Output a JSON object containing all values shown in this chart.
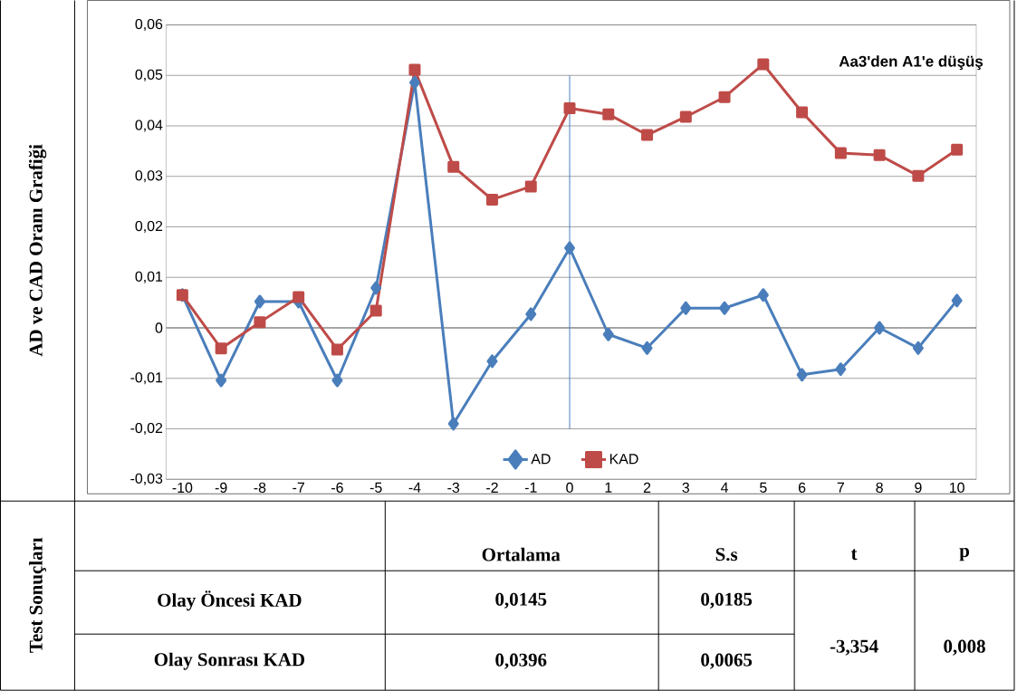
{
  "chart_data": {
    "type": "line",
    "x": [
      -10,
      -9,
      -8,
      -7,
      -6,
      -5,
      -4,
      -3,
      -2,
      -1,
      0,
      1,
      2,
      3,
      4,
      5,
      6,
      7,
      8,
      9,
      10
    ],
    "xlim": [
      -10.42,
      10.5
    ],
    "xticks": [
      -10,
      -9,
      -8,
      -7,
      -6,
      -5,
      -4,
      -3,
      -2,
      -1,
      0,
      1,
      2,
      3,
      4,
      5,
      6,
      7,
      8,
      9,
      10
    ],
    "ylim": [
      -0.03,
      0.06
    ],
    "yticks": [
      {
        "value": -0.03,
        "label": "-0,03"
      },
      {
        "value": -0.02,
        "label": "-0,02"
      },
      {
        "value": -0.01,
        "label": "-0,01"
      },
      {
        "value": 0,
        "label": "0"
      },
      {
        "value": 0.01,
        "label": "0,01"
      },
      {
        "value": 0.02,
        "label": "0,02"
      },
      {
        "value": 0.03,
        "label": "0,03"
      },
      {
        "value": 0.04,
        "label": "0,04"
      },
      {
        "value": 0.05,
        "label": "0,05"
      },
      {
        "value": 0.06,
        "label": "0,06"
      }
    ],
    "grid": "y",
    "legend": "bottom",
    "series": [
      {
        "name": "AD",
        "color": "#4a7ebb",
        "marker": "diamond",
        "values": [
          0.0065,
          -0.0104,
          0.0052,
          0.0052,
          -0.0104,
          0.0079,
          0.0486,
          -0.019,
          -0.0066,
          0.0027,
          0.0158,
          -0.0013,
          -0.004,
          0.0039,
          0.0039,
          0.0065,
          -0.0093,
          -0.0082,
          0,
          -0.004,
          0.0054
        ]
      },
      {
        "name": "KAD",
        "color": "#be4b48",
        "marker": "square",
        "values": [
          0.0065,
          -0.0041,
          0.0011,
          0.0061,
          -0.0043,
          0.0034,
          0.0511,
          0.0319,
          0.0254,
          0.028,
          0.0435,
          0.0423,
          0.0382,
          0.0418,
          0.0457,
          0.0522,
          0.0427,
          0.0346,
          0.0342,
          0.0301,
          0.0353
        ]
      }
    ],
    "ref_lines": [
      {
        "axis": "x",
        "value": 0,
        "color": "#4a7ebb"
      }
    ],
    "annotations": [
      "Aa3'den A1'e düşüş",
      "AD ve CAD Oranı Grafiği",
      "Test Sonuçları",
      "Ortalama",
      "S.s",
      "t",
      "p",
      "Olay Öncesi KAD",
      "0,0145",
      "0,0185",
      "Olay Sonrası KAD",
      "0,0396",
      "0,0065",
      "-3,354",
      "0,008"
    ]
  }
}
